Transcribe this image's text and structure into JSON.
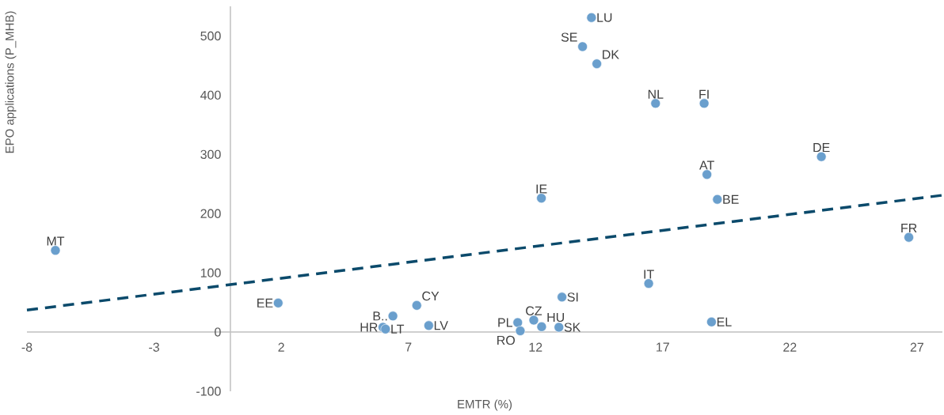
{
  "chart_data": {
    "type": "scatter",
    "xlabel": "EMTR  (%)",
    "ylabel": "EPO applications (P_MHB)",
    "xlim": [
      -8,
      28
    ],
    "ylim": [
      -100,
      550
    ],
    "xticks": [
      -8,
      -3,
      2,
      7,
      12,
      17,
      22,
      27
    ],
    "yticks": [
      -100,
      0,
      100,
      200,
      300,
      400,
      500
    ],
    "series": [
      {
        "color": "#6a9fcd",
        "marker": "circle",
        "x": [
          -6.88,
          1.88,
          6.39,
          6.0,
          6.1,
          7.33,
          7.8,
          11.3,
          11.4,
          11.93,
          12.24,
          12.92,
          13.04,
          16.45,
          18.92,
          12.23,
          18.74,
          19.15,
          26.68,
          23.24,
          18.63,
          16.72,
          14.41,
          13.85,
          14.2
        ],
        "values": [
          138,
          49,
          27,
          8,
          5,
          45,
          11,
          16,
          2,
          20,
          9,
          8,
          59,
          82,
          17,
          226,
          266,
          224,
          160,
          296,
          386,
          386,
          453,
          482,
          531
        ]
      },
      {
        "type": "line",
        "color": "#0b4a6b",
        "line_style": "dashed",
        "marker": "none",
        "x": [
          -8,
          28
        ],
        "values": [
          37,
          231
        ]
      }
    ],
    "annotations": [
      {
        "text": "MT",
        "x": -6.88,
        "y": 138
      },
      {
        "text": "EE",
        "x": 1.88,
        "y": 49
      },
      {
        "text": "B..",
        "x": 6.39,
        "y": 27
      },
      {
        "text": "HR",
        "x": 6.0,
        "y": 8
      },
      {
        "text": "LT",
        "x": 6.1,
        "y": 5
      },
      {
        "text": "CY",
        "x": 7.33,
        "y": 45
      },
      {
        "text": "LV",
        "x": 7.8,
        "y": 11
      },
      {
        "text": "PL",
        "x": 11.3,
        "y": 16
      },
      {
        "text": "RO",
        "x": 11.4,
        "y": 2
      },
      {
        "text": "CZ",
        "x": 11.93,
        "y": 20
      },
      {
        "text": "HU",
        "x": 12.24,
        "y": 9
      },
      {
        "text": "SK",
        "x": 12.92,
        "y": 8
      },
      {
        "text": "SI",
        "x": 13.04,
        "y": 59
      },
      {
        "text": "IT",
        "x": 16.45,
        "y": 82
      },
      {
        "text": "EL",
        "x": 18.92,
        "y": 17
      },
      {
        "text": "IE",
        "x": 12.23,
        "y": 226
      },
      {
        "text": "AT",
        "x": 18.74,
        "y": 266
      },
      {
        "text": "BE",
        "x": 19.15,
        "y": 224
      },
      {
        "text": "FR",
        "x": 26.68,
        "y": 160
      },
      {
        "text": "DE",
        "x": 23.24,
        "y": 296
      },
      {
        "text": "FI",
        "x": 18.63,
        "y": 386
      },
      {
        "text": "NL",
        "x": 16.72,
        "y": 386
      },
      {
        "text": "DK",
        "x": 14.41,
        "y": 453
      },
      {
        "text": "SE",
        "x": 13.85,
        "y": 482
      },
      {
        "text": "LU",
        "x": 14.2,
        "y": 531
      }
    ]
  }
}
